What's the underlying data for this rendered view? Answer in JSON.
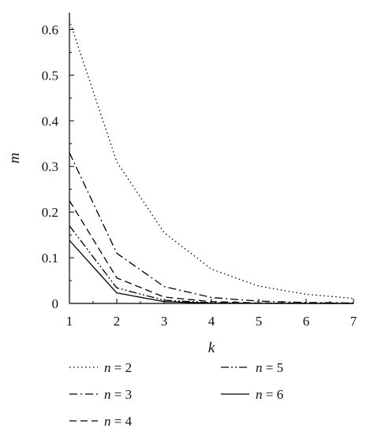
{
  "chart_data": {
    "type": "line",
    "title": "",
    "xlabel": "k",
    "ylabel": "m",
    "xlim": [
      1,
      7
    ],
    "ylim": [
      0,
      0.63
    ],
    "xticks": [
      1,
      2,
      3,
      4,
      5,
      6,
      7
    ],
    "yticks": [
      0,
      0.1,
      0.2,
      0.3,
      0.4,
      0.5,
      0.6
    ],
    "grid": false,
    "legend_position": "bottom",
    "x": [
      1,
      2,
      3,
      4,
      5,
      6,
      7
    ],
    "series": [
      {
        "name": "n = 2",
        "legend_var": "n",
        "legend_value": "2",
        "dash": "dotted",
        "values": [
          0.62,
          0.31,
          0.155,
          0.075,
          0.038,
          0.02,
          0.011
        ]
      },
      {
        "name": "n = 3",
        "legend_var": "n",
        "legend_value": "3",
        "dash": "dash-dot",
        "values": [
          0.33,
          0.11,
          0.037,
          0.013,
          0.005,
          0.002,
          0.001
        ]
      },
      {
        "name": "n = 4",
        "legend_var": "n",
        "legend_value": "4",
        "dash": "dashed",
        "values": [
          0.225,
          0.056,
          0.014,
          0.004,
          0.001,
          0.0005,
          0.0002
        ]
      },
      {
        "name": "n = 5",
        "legend_var": "n",
        "legend_value": "5",
        "dash": "dash-dot-dot",
        "values": [
          0.17,
          0.034,
          0.007,
          0.0015,
          0.0004,
          0.0001,
          0.0
        ]
      },
      {
        "name": "n = 6",
        "legend_var": "n",
        "legend_value": "6",
        "dash": "solid",
        "values": [
          0.138,
          0.023,
          0.004,
          0.0007,
          0.0001,
          0.0,
          0.0
        ]
      }
    ]
  }
}
